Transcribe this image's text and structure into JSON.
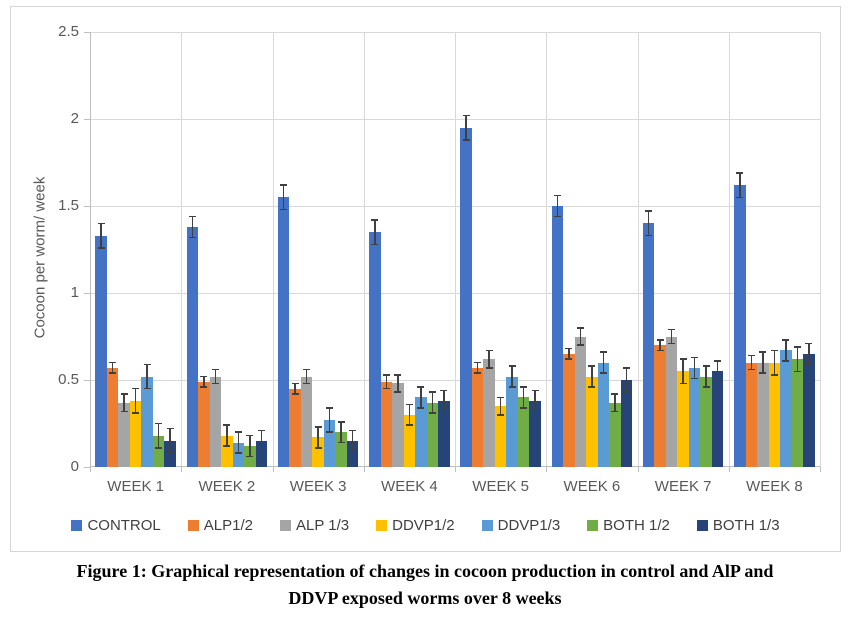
{
  "figure": {
    "caption_line1": "Figure 1: Graphical representation of changes in cocoon production in control and AlP and",
    "caption_line2": "DDVP exposed worms over 8 weeks"
  },
  "chart_data": {
    "type": "bar",
    "title": "",
    "xlabel": "",
    "ylabel": "Cocoon per worm/ week",
    "ylim": [
      0,
      2.5
    ],
    "ytick_interval": 0.5,
    "ytick_labels": [
      "0",
      "0.5",
      "1",
      "1.5",
      "2",
      "2.5"
    ],
    "grid": true,
    "legend_position": "bottom",
    "error_bars": true,
    "categories": [
      "WEEK 1",
      "WEEK 2",
      "WEEK 3",
      "WEEK 4",
      "WEEK 5",
      "WEEK 6",
      "WEEK 7",
      "WEEK 8"
    ],
    "series": [
      {
        "name": "CONTROL",
        "color": "#4472C4",
        "values": [
          1.33,
          1.38,
          1.55,
          1.35,
          1.95,
          1.5,
          1.4,
          1.62
        ],
        "errors": [
          0.07,
          0.06,
          0.07,
          0.07,
          0.07,
          0.06,
          0.07,
          0.07
        ]
      },
      {
        "name": "ALP1/2",
        "color": "#ED7D31",
        "values": [
          0.57,
          0.49,
          0.45,
          0.49,
          0.57,
          0.65,
          0.7,
          0.6
        ],
        "errors": [
          0.03,
          0.03,
          0.03,
          0.04,
          0.03,
          0.03,
          0.03,
          0.04
        ]
      },
      {
        "name": "ALP 1/3",
        "color": "#A5A5A5",
        "values": [
          0.37,
          0.52,
          0.52,
          0.48,
          0.62,
          0.75,
          0.75,
          0.6
        ],
        "errors": [
          0.05,
          0.04,
          0.04,
          0.05,
          0.05,
          0.05,
          0.04,
          0.06
        ]
      },
      {
        "name": "DDVP1/2",
        "color": "#FFC000",
        "values": [
          0.38,
          0.18,
          0.17,
          0.3,
          0.35,
          0.52,
          0.55,
          0.6
        ],
        "errors": [
          0.07,
          0.06,
          0.06,
          0.06,
          0.05,
          0.06,
          0.07,
          0.07
        ]
      },
      {
        "name": "DDVP1/3",
        "color": "#5B9BD5",
        "values": [
          0.52,
          0.14,
          0.27,
          0.4,
          0.52,
          0.6,
          0.57,
          0.67
        ],
        "errors": [
          0.07,
          0.06,
          0.07,
          0.06,
          0.06,
          0.06,
          0.06,
          0.06
        ]
      },
      {
        "name": "BOTH 1/2",
        "color": "#70AD47",
        "values": [
          0.18,
          0.12,
          0.2,
          0.37,
          0.4,
          0.37,
          0.52,
          0.62
        ],
        "errors": [
          0.07,
          0.06,
          0.06,
          0.06,
          0.06,
          0.05,
          0.06,
          0.07
        ]
      },
      {
        "name": "BOTH 1/3",
        "color": "#264478",
        "values": [
          0.15,
          0.15,
          0.15,
          0.38,
          0.38,
          0.5,
          0.55,
          0.65
        ],
        "errors": [
          0.07,
          0.06,
          0.06,
          0.06,
          0.06,
          0.07,
          0.06,
          0.06
        ]
      }
    ]
  },
  "colors": {
    "gridline": "#d9d9d9",
    "axis_line": "#bfbfbf",
    "axis_text": "#595959",
    "legend_text": "#404040",
    "error_bar": "#404040",
    "frame_border": "#d6d6d6"
  }
}
